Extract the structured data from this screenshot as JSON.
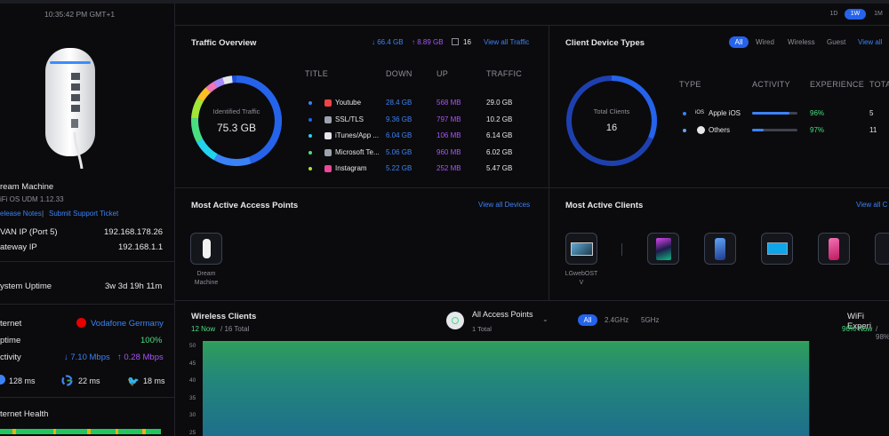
{
  "sidebar": {
    "timestamp": "10:35:42 PM GMT+1",
    "device_name": "ream Machine",
    "device_sub": "iFi OS UDM 1.12.33",
    "release_notes": "elease Notes",
    "support": "Submit Support Ticket",
    "wan_label": "VAN IP (Port 5)",
    "wan_value": "192.168.178.26",
    "gw_label": "ateway IP",
    "gw_value": "192.168.1.1",
    "uptime_label": "ystem Uptime",
    "uptime_value": "3w 3d 19h 11m",
    "internet_label": "ternet",
    "internet_value": "Vodafone Germany",
    "uptime2_label": "ptime",
    "uptime2_value": "100%",
    "activity_label": "ctivity",
    "down_rate": "↓ 7.10 Mbps",
    "up_rate": "↑ 0.28 Mbps",
    "ping1": "128 ms",
    "ping2": "22 ms",
    "ping3": "18 ms",
    "health_label": "ternet Health"
  },
  "range": {
    "options": [
      "1D",
      "1W",
      "1M"
    ],
    "selected": "1W"
  },
  "traffic": {
    "title": "Traffic Overview",
    "down_total": "↓ 66.4 GB",
    "up_total": "↑ 8.89 GB",
    "clients": "16",
    "view_all": "View all Traffic",
    "donut_label": "Identified Traffic",
    "donut_value": "75.3 GB",
    "headers": [
      "TITLE",
      "DOWN",
      "UP",
      "TRAFFIC"
    ],
    "rows": [
      {
        "name": "Youtube",
        "down": "28.4 GB",
        "up": "568 MB",
        "traffic": "29.0 GB",
        "color": "#ef4444",
        "dot": "#3b82f6"
      },
      {
        "name": "SSL/TLS",
        "down": "9.36 GB",
        "up": "797 MB",
        "traffic": "10.2 GB",
        "color": "#9ca3af",
        "dot": "#2563eb"
      },
      {
        "name": "iTunes/App ...",
        "down": "6.04 GB",
        "up": "106 MB",
        "traffic": "6.14 GB",
        "color": "#e5e7eb",
        "dot": "#22d3ee"
      },
      {
        "name": "Microsoft Te...",
        "down": "5.06 GB",
        "up": "960 MB",
        "traffic": "6.02 GB",
        "color": "#9ca3af",
        "dot": "#4ade80"
      },
      {
        "name": "Instagram",
        "down": "5.22 GB",
        "up": "252 MB",
        "traffic": "5.47 GB",
        "color": "#ec4899",
        "dot": "#a3e635"
      }
    ]
  },
  "clients": {
    "title": "Client Device Types",
    "filters": [
      "All",
      "Wired",
      "Wireless",
      "Guest"
    ],
    "selected": "All",
    "view_all": "View all",
    "donut_label": "Total Clients",
    "donut_value": "16",
    "headers": [
      "TYPE",
      "ACTIVITY",
      "EXPERIENCE",
      "TOTA"
    ],
    "rows": [
      {
        "name": "Apple iOS",
        "prefix": "iOS",
        "activity_pct": 0.82,
        "experience": "96%",
        "total": "5"
      },
      {
        "name": "Others",
        "prefix": "",
        "activity_pct": 0.25,
        "experience": "97%",
        "total": "11"
      }
    ]
  },
  "access_points": {
    "title": "Most Active Access Points",
    "view_all": "View all Devices",
    "items": [
      {
        "label": "Dream Machine"
      }
    ]
  },
  "active_clients": {
    "title": "Most Active Clients",
    "view_all": "View all C",
    "first_label": "LGwebOST V"
  },
  "wireless": {
    "title": "Wireless Clients",
    "now": "12 Now",
    "total": "/ 16 Total",
    "ap_title": "All Access Points",
    "ap_sub": "1 Total",
    "bands": [
      "All",
      "2.4GHz",
      "5GHz"
    ],
    "band_selected": "All",
    "wifi_title": "WiFi Experi",
    "wifi_now": "96% Now",
    "wifi_rest": "/ 98%",
    "y_ticks": [
      "50",
      "45",
      "40",
      "35",
      "30",
      "25"
    ]
  }
}
